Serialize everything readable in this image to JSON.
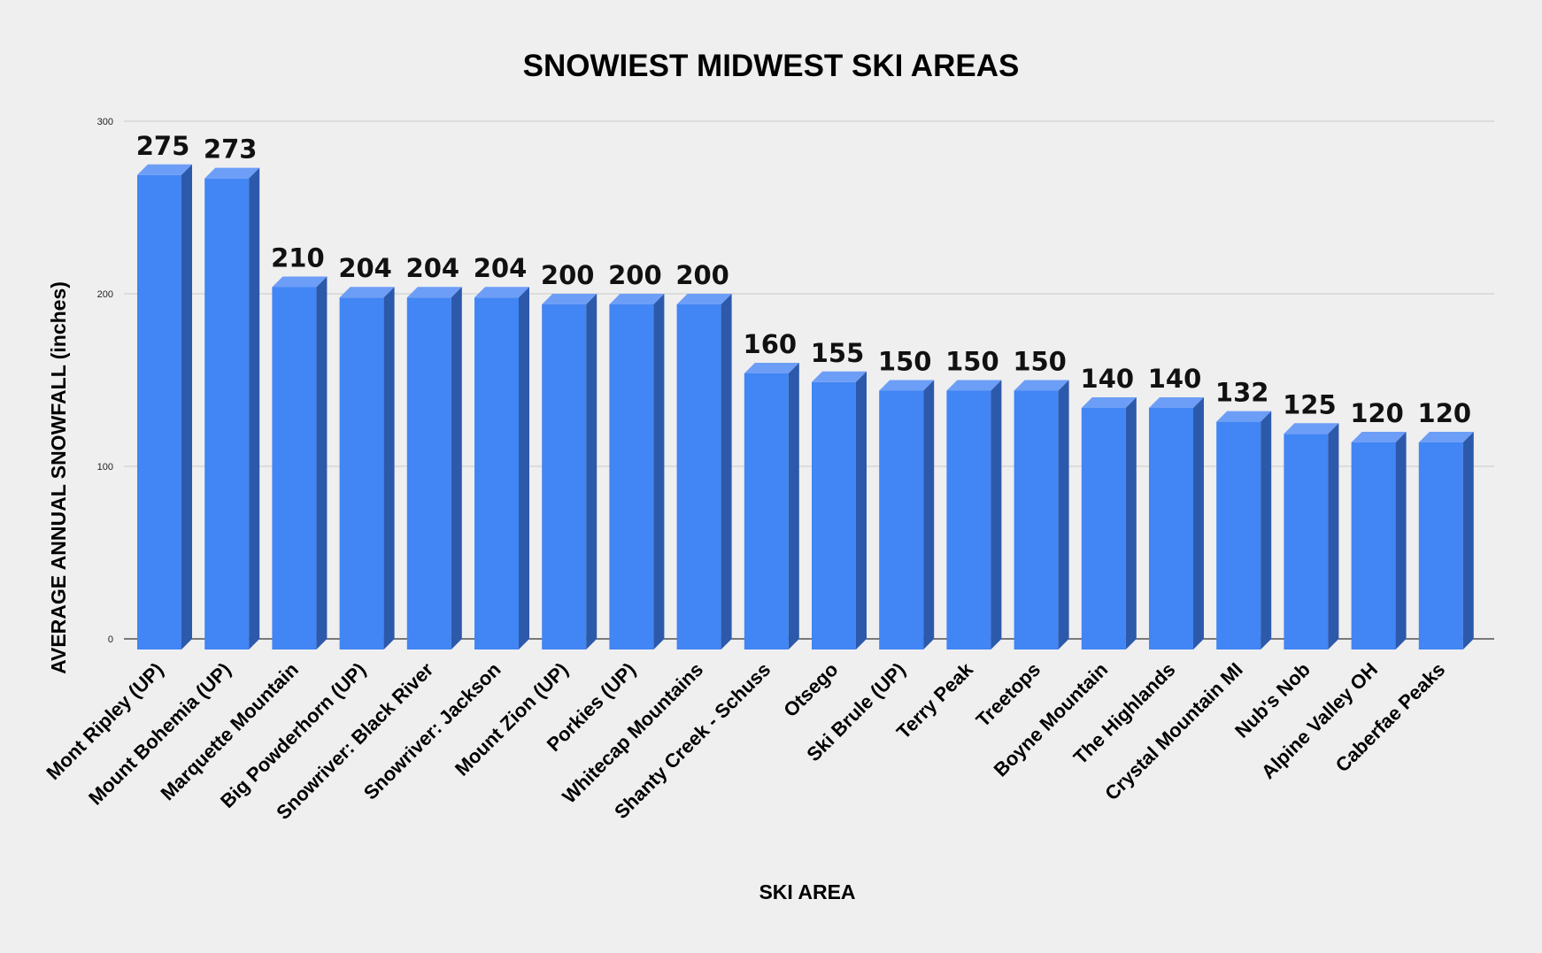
{
  "chart_data": {
    "type": "bar",
    "title": "SNOWIEST MIDWEST SKI AREAS",
    "xlabel": "SKI AREA",
    "ylabel": "AVERAGE ANNUAL SNOWFALL (inches)",
    "ylim": [
      0,
      300
    ],
    "yticks": [
      "0",
      "100",
      "200",
      "300"
    ],
    "grid": true,
    "legend": "none",
    "categories": [
      "Mont Ripley (UP)",
      "Mount Bohemia (UP)",
      "Marquette Mountain",
      "Big Powderhorn (UP)",
      "Snowriver: Black River",
      "Snowriver: Jackson",
      "Mount Zion (UP)",
      "Porkies (UP)",
      "Whitecap Mountains",
      "Shanty Creek - Schuss",
      "Otsego",
      "Ski Brule (UP)",
      "Terry Peak",
      "Treetops",
      "Boyne Mountain",
      "The Highlands",
      "Crystal Mountain MI",
      "Nub's Nob",
      "Alpine Valley OH",
      "Caberfae Peaks"
    ],
    "values": [
      275,
      273,
      210,
      204,
      204,
      204,
      200,
      200,
      200,
      160,
      155,
      150,
      150,
      150,
      140,
      140,
      132,
      125,
      120,
      120
    ],
    "data_labels": [
      "275",
      "273",
      "210",
      "204",
      "204",
      "204",
      "200",
      "200",
      "200",
      "160",
      "155",
      "150",
      "150",
      "150",
      "140",
      "140",
      "132",
      "125",
      "120",
      "120"
    ],
    "colors": {
      "bar_front": "#4285f4",
      "bar_top": "#6d9ef7",
      "bar_side": "#2d59ab"
    }
  }
}
